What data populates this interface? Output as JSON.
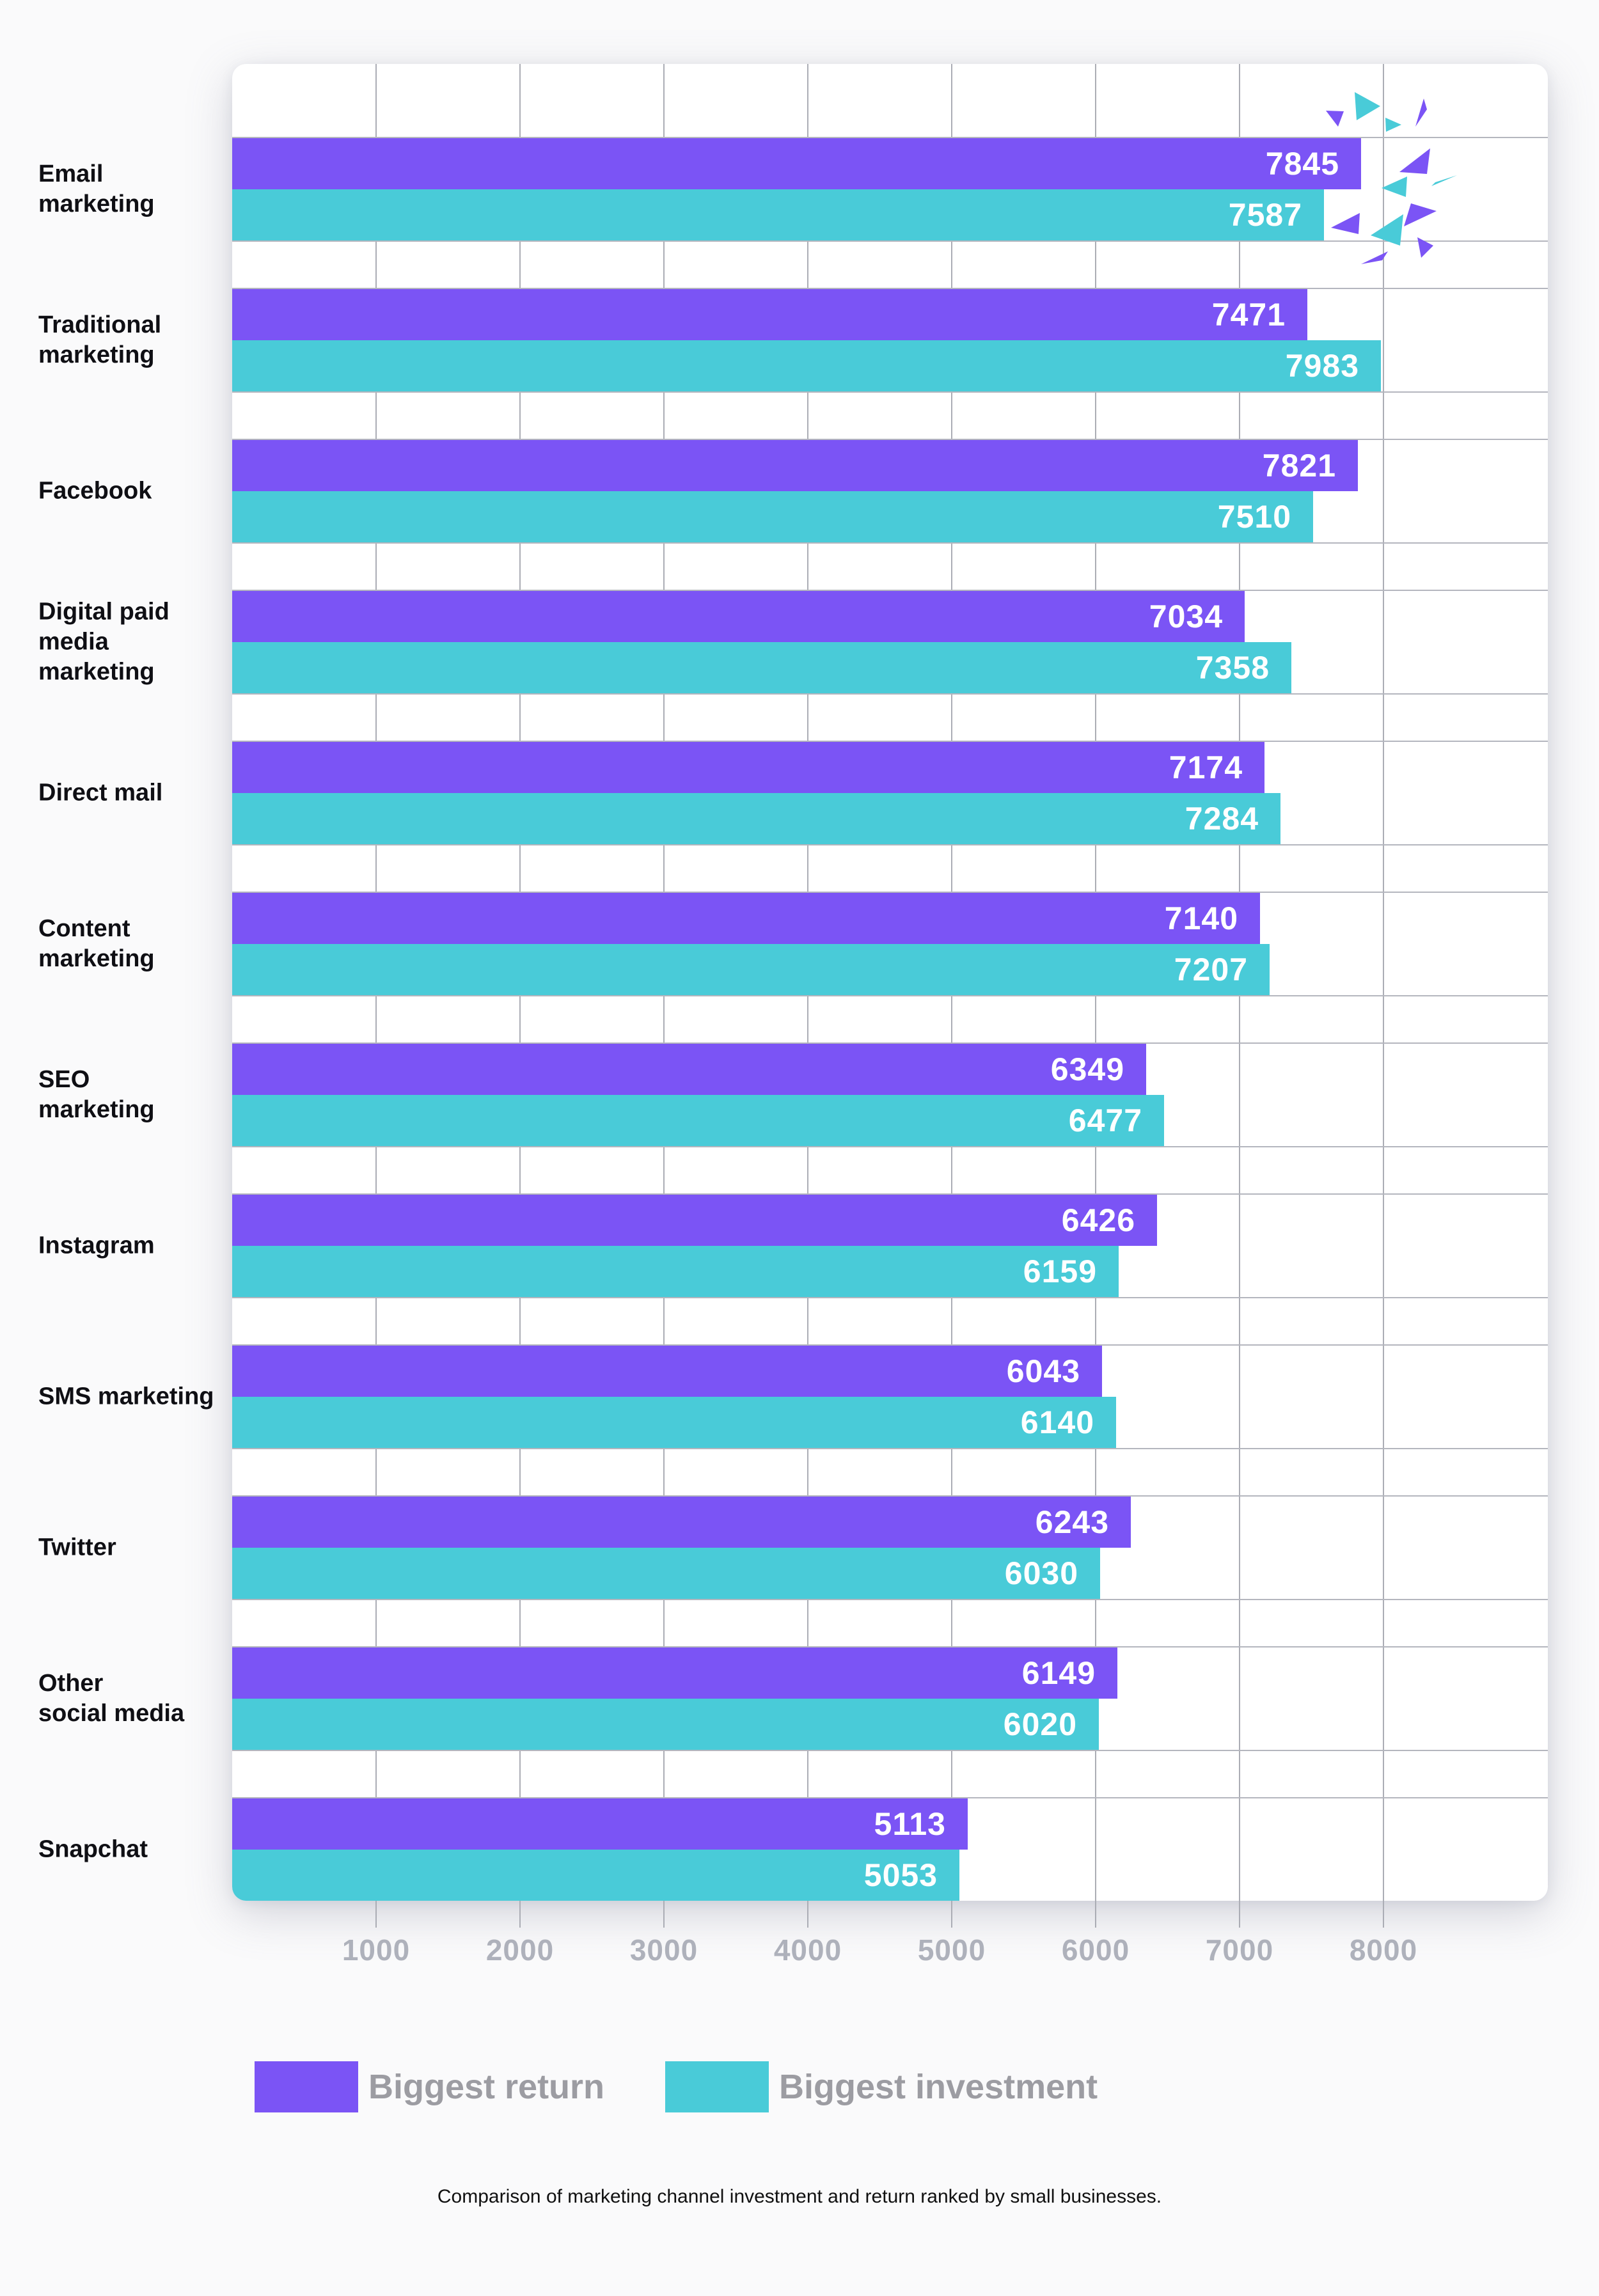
{
  "chart_data": {
    "type": "bar",
    "orientation": "horizontal",
    "caption": "Comparison of marketing channel investment and return ranked by small businesses.",
    "categories": [
      {
        "label": "Email marketing",
        "lines": [
          "Email",
          "marketing"
        ]
      },
      {
        "label": "Traditional marketing",
        "lines": [
          "Traditional",
          "marketing"
        ]
      },
      {
        "label": "Facebook",
        "lines": [
          "Facebook"
        ]
      },
      {
        "label": "Digital paid media marketing",
        "lines": [
          "Digital paid",
          "media marketing"
        ]
      },
      {
        "label": "Direct mail",
        "lines": [
          "Direct mail"
        ]
      },
      {
        "label": "Content marketing",
        "lines": [
          "Content",
          "marketing"
        ]
      },
      {
        "label": "SEO marketing",
        "lines": [
          "SEO",
          "marketing"
        ]
      },
      {
        "label": "Instagram",
        "lines": [
          "Instagram"
        ]
      },
      {
        "label": "SMS marketing",
        "lines": [
          "SMS marketing"
        ]
      },
      {
        "label": "Twitter",
        "lines": [
          "Twitter"
        ]
      },
      {
        "label": "Other social media",
        "lines": [
          "Other",
          "social media"
        ]
      },
      {
        "label": "Snapchat",
        "lines": [
          "Snapchat"
        ]
      }
    ],
    "series": [
      {
        "name": "Biggest return",
        "color": "#7b54f5",
        "values": [
          7845,
          7471,
          7821,
          7034,
          7174,
          7140,
          6349,
          6426,
          6043,
          6243,
          6149,
          5113
        ]
      },
      {
        "name": "Biggest investment",
        "color": "#49cbd8",
        "values": [
          7587,
          7983,
          7510,
          7358,
          7284,
          7207,
          6477,
          6159,
          6140,
          6030,
          6020,
          5053
        ]
      }
    ],
    "x_ticks": [
      "1000",
      "2000",
      "3000",
      "4000",
      "5000",
      "6000",
      "7000",
      "8000"
    ],
    "xlim": [
      0,
      9142
    ],
    "grid": "vertical-at-ticks, horizontal-at-row-boundaries",
    "legend_position": "bottom"
  },
  "legend": {
    "items": [
      {
        "label": "Biggest return",
        "color": "#7b54f5"
      },
      {
        "label": "Biggest investment",
        "color": "#49cbd8"
      }
    ]
  },
  "colors": {
    "return_bar": "#7b54f5",
    "investment_bar": "#49cbd8",
    "gridline": "#abadb5",
    "tick_label": "#aeb1bb",
    "legend_label": "#9c9ca2",
    "category_label": "#0f0f14",
    "card_background": "#ffffff",
    "page_background": "#fafafb",
    "bar_value_text": "#ffffff"
  }
}
